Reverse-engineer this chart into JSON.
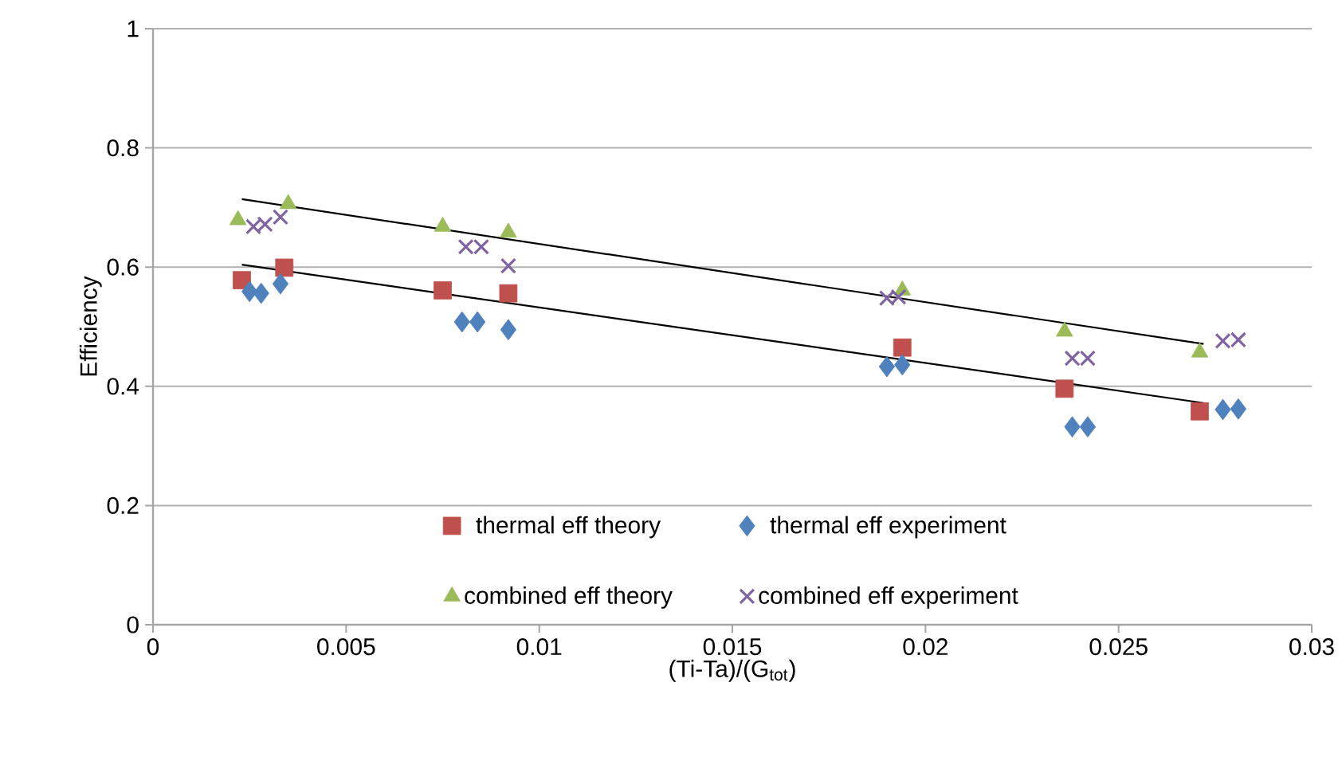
{
  "chart_data": {
    "type": "scatter",
    "xlabel": "(Ti-Ta)/(G$_{tot}$)",
    "ylabel": "Efficiency",
    "xlim": [
      0,
      0.03
    ],
    "xticks": [
      0,
      0.005,
      0.01,
      0.015,
      0.02,
      0.025,
      0.03
    ],
    "ylim": [
      0,
      1
    ],
    "yticks": [
      0,
      0.2,
      0.4,
      0.6,
      0.8,
      1
    ],
    "grid": "y",
    "legend": "bottom",
    "series": [
      {
        "name": "thermal eff theory",
        "color": "#c0504d",
        "marker": "square",
        "x": [
          0.0023,
          0.0034,
          0.0075,
          0.0092,
          0.0194,
          0.0236,
          0.0271
        ],
        "values": [
          0.578,
          0.599,
          0.561,
          0.556,
          0.465,
          0.396,
          0.358
        ]
      },
      {
        "name": "thermal eff experiment",
        "color": "#4f81bd",
        "marker": "diamond",
        "x": [
          0.0025,
          0.0028,
          0.0033,
          0.008,
          0.0084,
          0.0092,
          0.019,
          0.0194,
          0.0238,
          0.0242,
          0.0277,
          0.0281
        ],
        "values": [
          0.559,
          0.556,
          0.572,
          0.508,
          0.508,
          0.495,
          0.433,
          0.436,
          0.332,
          0.332,
          0.361,
          0.362
        ]
      },
      {
        "name": "combined eff theory",
        "color": "#9bbb59",
        "marker": "triangle",
        "x": [
          0.0022,
          0.0035,
          0.0075,
          0.0092,
          0.0194,
          0.0236,
          0.0271
        ],
        "values": [
          0.679,
          0.706,
          0.668,
          0.658,
          0.561,
          0.492,
          0.457
        ]
      },
      {
        "name": "combined eff experiment",
        "color": "#8064a2",
        "marker": "cross",
        "x": [
          0.0026,
          0.0029,
          0.0033,
          0.0081,
          0.0085,
          0.0092,
          0.019,
          0.0193,
          0.0238,
          0.0242,
          0.0277,
          0.0281
        ],
        "values": [
          0.668,
          0.672,
          0.684,
          0.634,
          0.634,
          0.602,
          0.548,
          0.55,
          0.447,
          0.447,
          0.476,
          0.478
        ]
      },
      {
        "type": "line",
        "color": "#000000",
        "marker": "none",
        "x": [
          0.0023,
          0.0272
        ],
        "values": [
          0.714,
          0.471
        ]
      },
      {
        "type": "line",
        "color": "#000000",
        "marker": "none",
        "x": [
          0.0023,
          0.0272
        ],
        "values": [
          0.604,
          0.372
        ]
      }
    ]
  }
}
